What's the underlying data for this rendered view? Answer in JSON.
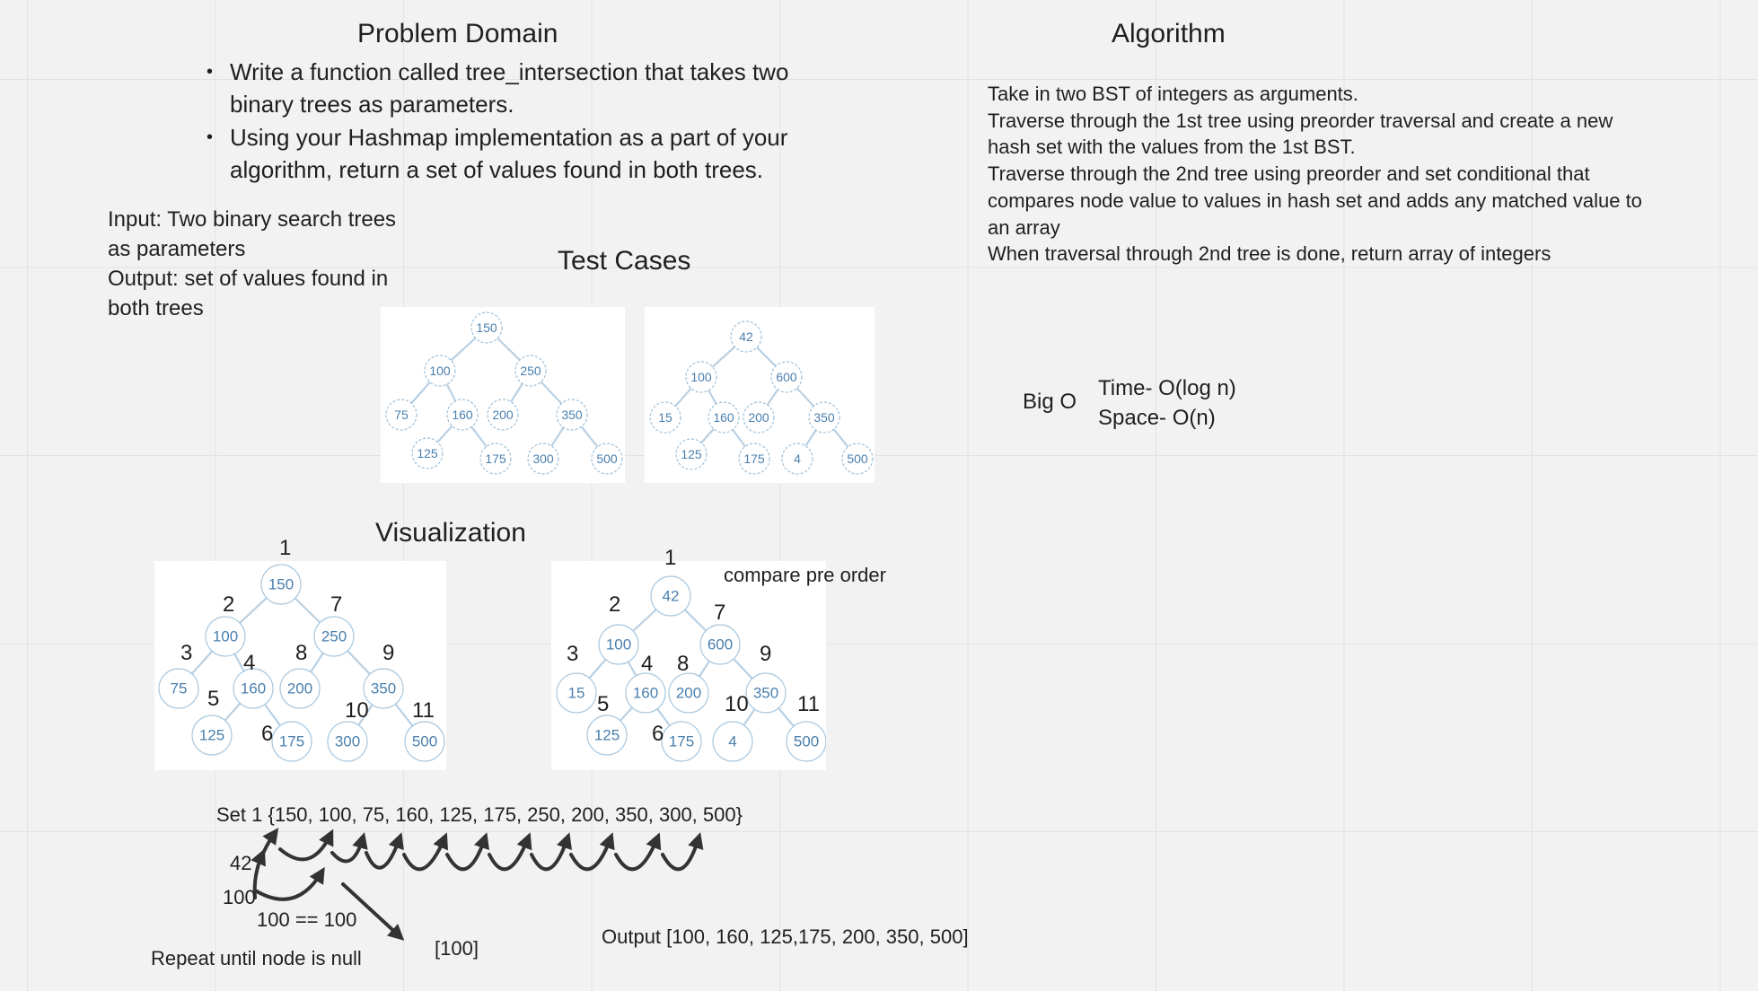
{
  "problem_domain": {
    "heading": "Problem Domain",
    "bullets": [
      "Write a function called tree_intersection that takes two binary trees as parameters.",
      "Using your Hashmap implementation as a part of your algorithm, return a set of values found in both trees."
    ],
    "input": "Input: Two binary search trees as parameters",
    "output": "Output: set of values found in both trees"
  },
  "algorithm": {
    "heading": "Algorithm",
    "lines": [
      "Take in two BST of integers as arguments.",
      "Traverse through the 1st tree using preorder traversal and create a new hash set with the values from the 1st BST.",
      "Traverse through the 2nd tree using preorder and set conditional that compares node value to values in hash set and adds any matched value to an array",
      "When traversal through 2nd tree is done, return array of integers"
    ]
  },
  "big_o": {
    "label": "Big O",
    "time": "Time-  O(log n)",
    "space": "Space- O(n)"
  },
  "test_cases": {
    "heading": "Test Cases",
    "tree1": [
      "150",
      "100",
      "250",
      "75",
      "160",
      "200",
      "350",
      "125",
      "175",
      "300",
      "500"
    ],
    "tree2": [
      "42",
      "100",
      "600",
      "15",
      "160",
      "200",
      "350",
      "125",
      "175",
      "4",
      "500"
    ]
  },
  "visualization": {
    "heading": "Visualization",
    "tree1": [
      "150",
      "100",
      "250",
      "75",
      "160",
      "200",
      "350",
      "125",
      "175",
      "300",
      "500"
    ],
    "tree2": [
      "42",
      "100",
      "600",
      "15",
      "160",
      "200",
      "350",
      "125",
      "175",
      "4",
      "500"
    ],
    "order_labels": [
      "1",
      "2",
      "7",
      "3",
      "4",
      "8",
      "9",
      "5",
      "6",
      "10",
      "11"
    ],
    "compare_note": "compare pre order",
    "set_line": "Set 1 {150, 100, 75, 160, 125, 175, 250, 200, 350, 300, 500}",
    "label_42": "42",
    "label_100": "100",
    "equality": "100 == 100",
    "result_array": "[100]",
    "repeat_note": "Repeat until node is null",
    "output_line": "Output [100, 160, 125,175, 200, 350, 500]"
  },
  "colors": {
    "node_text": "#4a7fad",
    "node_stroke": "#9ec0d9",
    "arrow": "#333333"
  }
}
